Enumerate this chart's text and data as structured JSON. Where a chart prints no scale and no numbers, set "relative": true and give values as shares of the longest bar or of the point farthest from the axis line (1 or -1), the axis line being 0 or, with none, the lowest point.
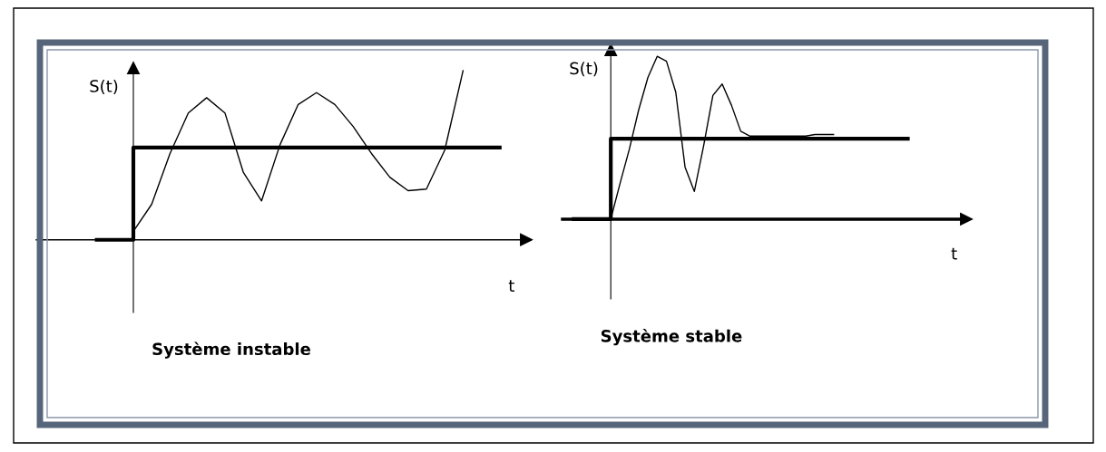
{
  "chart_data": [
    {
      "type": "line",
      "title": "Système instable",
      "xlabel": "t",
      "ylabel": "S(t)",
      "relative": true,
      "marker": "none",
      "line_style": "solid",
      "categories": [
        null,
        null,
        null,
        null,
        null,
        null,
        null,
        null,
        null,
        null,
        null,
        null,
        null,
        null,
        null,
        null,
        null,
        null,
        null,
        null,
        null,
        null,
        null
      ],
      "series": [
        {
          "type": "step",
          "color": "#000000",
          "values": [
            0,
            0,
            0.545,
            0.545,
            0.545,
            0.545,
            0.545,
            0.545,
            0.545,
            0.545,
            0.545,
            0.545,
            0.545,
            0.545,
            0.545,
            0.545,
            0.545,
            0.545,
            0.545,
            0.545,
            0.545,
            0.545,
            0.545
          ]
        },
        {
          "color": "#000000",
          "values": [
            null,
            null,
            0.05,
            0.21,
            0.51,
            0.75,
            0.84,
            0.75,
            0.4,
            0.23,
            0.56,
            0.8,
            0.87,
            0.8,
            0.67,
            0.51,
            0.37,
            0.29,
            0.3,
            0.53,
            1.0,
            null,
            null
          ]
        }
      ]
    },
    {
      "type": "line",
      "title": "Système stable",
      "xlabel": "t",
      "ylabel": "S(t)",
      "relative": true,
      "marker": "none",
      "line_style": "solid",
      "categories": [
        null,
        null,
        null,
        null,
        null,
        null,
        null,
        null,
        null,
        null,
        null,
        null,
        null,
        null,
        null,
        null,
        null,
        null,
        null,
        null,
        null,
        null,
        null,
        null,
        null,
        null,
        null,
        null,
        null,
        null,
        null,
        null,
        null,
        null,
        null,
        null,
        null
      ],
      "series": [
        {
          "type": "step",
          "color": "#000000",
          "values": [
            0,
            0,
            0,
            0,
            0.494,
            0.494,
            0.494,
            0.494,
            0.494,
            0.494,
            0.494,
            0.494,
            0.494,
            0.494,
            0.494,
            0.494,
            0.494,
            0.494,
            0.494,
            0.494,
            0.494,
            0.494,
            0.494,
            0.494,
            0.494,
            0.494,
            0.494,
            0.494,
            0.494,
            0.494,
            0.494,
            0.494,
            0.494,
            0.494,
            0.494,
            0.494,
            0.494
          ]
        },
        {
          "color": "#000000",
          "values": [
            null,
            null,
            null,
            null,
            0,
            0.22,
            0.43,
            0.67,
            0.87,
            1.0,
            0.97,
            0.78,
            0.32,
            0.17,
            0.45,
            0.76,
            0.83,
            0.7,
            0.54,
            0.51,
            0.51,
            0.51,
            0.51,
            0.51,
            0.51,
            0.51,
            0.52,
            0.52,
            0.52,
            null,
            null,
            null,
            null,
            null,
            null,
            null,
            null
          ]
        }
      ]
    }
  ]
}
